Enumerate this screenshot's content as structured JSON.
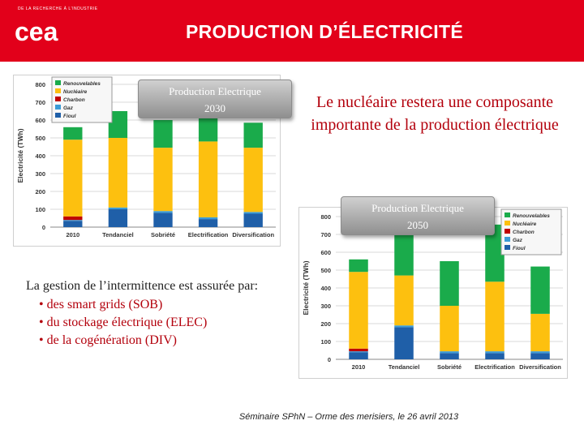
{
  "header": {
    "logo_small_text": "DE LA RECHERCHE À L'INDUSTRIE",
    "logo_name": "cea",
    "title": "PRODUCTION D’ÉLECTRICITÉ"
  },
  "badges": {
    "b2030": {
      "line1": "Production Electrique",
      "line2": "2030"
    },
    "b2050": {
      "line1": "Production Electrique",
      "line2": "2050"
    }
  },
  "statement": "Le nucléaire restera une composante importante de la production électrique",
  "intermittence": {
    "intro": "La gestion de l’intermittence est assurée par:",
    "items": [
      "des smart grids (SOB)",
      "du stockage électrique (ELEC)",
      "de la cogénération (DIV)"
    ]
  },
  "footer": "Séminaire SPhN – Orme des merisiers, le 26 avril 2013",
  "colors": {
    "header": "#e2001a",
    "renouvelables": "#1aab4b",
    "nucleaire": "#fdc00f",
    "charbon": "#c00000",
    "gaz": "#3b9bd6",
    "fioul": "#1f5fa8",
    "statement": "#b3000c"
  },
  "chart_data": [
    {
      "type": "bar",
      "stacked": true,
      "ylabel": "Electricité (TWh)",
      "ylim": [
        0,
        800
      ],
      "yticks": [
        0,
        100,
        200,
        300,
        400,
        500,
        600,
        700,
        800
      ],
      "grid": true,
      "legend_position": "top-left",
      "categories": [
        "2010",
        "Tendanciel",
        "Sobriété",
        "Electrification",
        "Diversification"
      ],
      "series": [
        {
          "name": "Fioul",
          "color": "#1f5fa8",
          "values": [
            35,
            100,
            80,
            45,
            75
          ]
        },
        {
          "name": "Gaz",
          "color": "#3b9bd6",
          "values": [
            5,
            10,
            10,
            10,
            10
          ]
        },
        {
          "name": "Charbon",
          "color": "#c00000",
          "values": [
            20,
            0,
            0,
            0,
            0
          ]
        },
        {
          "name": "Nucléaire",
          "color": "#fdc00f",
          "values": [
            430,
            390,
            355,
            425,
            360
          ]
        },
        {
          "name": "Renouvelables",
          "color": "#1aab4b",
          "values": [
            70,
            150,
            155,
            170,
            140
          ]
        }
      ]
    },
    {
      "type": "bar",
      "stacked": true,
      "ylabel": "Electricité (TWh)",
      "ylim": [
        0,
        800
      ],
      "yticks": [
        0,
        100,
        200,
        300,
        400,
        500,
        600,
        700,
        800
      ],
      "grid": true,
      "legend_position": "top-right",
      "categories": [
        "2010",
        "Tendanciel",
        "Sobriété",
        "Electrification",
        "Diversification"
      ],
      "series": [
        {
          "name": "Fioul",
          "color": "#1f5fa8",
          "values": [
            40,
            180,
            35,
            35,
            35
          ]
        },
        {
          "name": "Gaz",
          "color": "#3b9bd6",
          "values": [
            5,
            10,
            10,
            10,
            10
          ]
        },
        {
          "name": "Charbon",
          "color": "#c00000",
          "values": [
            15,
            0,
            0,
            0,
            0
          ]
        },
        {
          "name": "Nucléaire",
          "color": "#fdc00f",
          "values": [
            430,
            280,
            255,
            390,
            210
          ]
        },
        {
          "name": "Renouvelables",
          "color": "#1aab4b",
          "values": [
            70,
            250,
            250,
            320,
            265
          ]
        }
      ]
    }
  ]
}
